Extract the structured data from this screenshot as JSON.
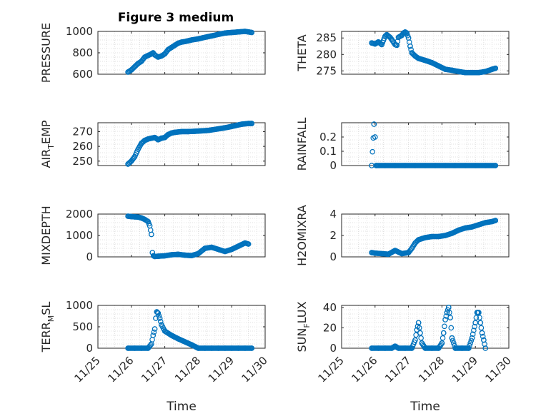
{
  "figure": {
    "title": "Figure 3 medium",
    "marker_color": "#0072BD"
  },
  "chart_data": [
    {
      "type": "scatter",
      "title": "Figure 3 medium",
      "ylabel": "PRESSURE",
      "xlabel": "",
      "xlim": [
        "11/25",
        "11/30"
      ],
      "xticks": [
        "11/25",
        "11/26",
        "11/27",
        "11/28",
        "11/29",
        "11/30"
      ],
      "ylim": [
        600,
        1000
      ],
      "yticks": [
        "600",
        "800",
        "1000"
      ],
      "grid": "dotted",
      "x": [
        25.9,
        26.0,
        26.1,
        26.2,
        26.3,
        26.4,
        26.5,
        26.6,
        26.65,
        26.7,
        26.8,
        26.9,
        27.0,
        27.1,
        27.2,
        27.3,
        27.4,
        27.5,
        27.6,
        27.7,
        27.8,
        27.9,
        28.0,
        28.2,
        28.4,
        28.6,
        28.8,
        29.0,
        29.2,
        29.4,
        29.5,
        29.6
      ],
      "y": [
        620,
        640,
        670,
        700,
        720,
        760,
        775,
        790,
        800,
        780,
        760,
        770,
        790,
        830,
        850,
        870,
        890,
        900,
        905,
        912,
        920,
        925,
        930,
        945,
        958,
        972,
        985,
        990,
        995,
        1000,
        995,
        990
      ]
    },
    {
      "type": "scatter",
      "ylabel": "THETA",
      "xlim": [
        "11/25",
        "11/30"
      ],
      "xticks": [
        "11/25",
        "11/26",
        "11/27",
        "11/28",
        "11/29",
        "11/30"
      ],
      "ylim": [
        274,
        287
      ],
      "yticks": [
        "275",
        "280",
        "285"
      ],
      "grid": "dotted",
      "x": [
        25.9,
        26.0,
        26.1,
        26.2,
        26.3,
        26.35,
        26.45,
        26.5,
        26.6,
        26.65,
        26.7,
        26.8,
        26.85,
        26.9,
        26.95,
        27.0,
        27.05,
        27.1,
        27.15,
        27.2,
        27.3,
        27.5,
        27.7,
        27.9,
        28.1,
        28.3,
        28.5,
        28.7,
        28.9,
        29.1,
        29.3,
        29.5,
        29.6
      ],
      "y": [
        283.5,
        283.2,
        283.8,
        283.0,
        285.5,
        286,
        285.2,
        284.5,
        283.0,
        282.8,
        285.2,
        285.8,
        286.5,
        286.8,
        286.5,
        285.0,
        282.5,
        280.5,
        280.0,
        279.5,
        278.8,
        278.2,
        277.5,
        276.5,
        275.5,
        275.2,
        274.8,
        274.5,
        274.5,
        274.5,
        274.8,
        275.5,
        275.8
      ]
    },
    {
      "type": "scatter",
      "ylabel": "AIR_TEMP",
      "xlim": [
        "11/25",
        "11/30"
      ],
      "xticks": [
        "11/25",
        "11/26",
        "11/27",
        "11/28",
        "11/29",
        "11/30"
      ],
      "ylim": [
        247,
        276
      ],
      "yticks": [
        "250",
        "260",
        "270"
      ],
      "grid": "dotted",
      "x": [
        25.9,
        26.0,
        26.1,
        26.2,
        26.3,
        26.4,
        26.5,
        26.6,
        26.7,
        26.8,
        26.9,
        27.0,
        27.1,
        27.2,
        27.3,
        27.5,
        27.7,
        27.9,
        28.1,
        28.3,
        28.5,
        28.7,
        28.9,
        29.1,
        29.3,
        29.5,
        29.6
      ],
      "y": [
        248,
        250,
        253,
        258,
        262,
        264,
        265,
        265.5,
        266,
        264.5,
        265.5,
        266,
        268,
        269,
        269.5,
        270,
        270,
        270.2,
        270.5,
        270.8,
        271.5,
        272.2,
        273,
        274,
        275,
        275.5,
        275.5
      ]
    },
    {
      "type": "scatter",
      "ylabel": "RAINFALL",
      "xlim": [
        "11/25",
        "11/30"
      ],
      "xticks": [
        "11/25",
        "11/26",
        "11/27",
        "11/28",
        "11/29",
        "11/30"
      ],
      "ylim": [
        0,
        0.3
      ],
      "yticks": [
        "0",
        "0.1",
        "0.2"
      ],
      "grid": "dotted",
      "x": [
        25.9,
        25.97,
        26.0,
        26.03,
        26.3,
        26.6,
        26.9,
        27.2,
        27.5,
        27.8,
        28.1,
        28.4,
        28.7,
        29.0,
        29.3,
        29.6
      ],
      "y": [
        0,
        0.29,
        0.2,
        0,
        0,
        0,
        0,
        0,
        0,
        0,
        0,
        0,
        0,
        0,
        0,
        0
      ]
    },
    {
      "type": "scatter",
      "ylabel": "MIXDEPTH",
      "xlim": [
        "11/25",
        "11/30"
      ],
      "xticks": [
        "11/25",
        "11/26",
        "11/27",
        "11/28",
        "11/29",
        "11/30"
      ],
      "ylim": [
        0,
        2000
      ],
      "yticks": [
        "0",
        "1000",
        "2000"
      ],
      "grid": "dotted",
      "x": [
        25.9,
        26.0,
        26.1,
        26.2,
        26.3,
        26.4,
        26.5,
        26.55,
        26.6,
        26.63,
        26.66,
        26.7,
        26.8,
        27.0,
        27.2,
        27.4,
        27.6,
        27.8,
        28.0,
        28.2,
        28.4,
        28.6,
        28.8,
        29.0,
        29.2,
        29.4,
        29.5
      ],
      "y": [
        1900,
        1880,
        1870,
        1860,
        1820,
        1750,
        1650,
        1450,
        1050,
        200,
        50,
        20,
        30,
        50,
        100,
        120,
        80,
        60,
        150,
        400,
        450,
        350,
        250,
        350,
        500,
        650,
        600
      ]
    },
    {
      "type": "scatter",
      "ylabel": "H2OMIXRA",
      "xlim": [
        "11/25",
        "11/30"
      ],
      "xticks": [
        "11/25",
        "11/26",
        "11/27",
        "11/28",
        "11/29",
        "11/30"
      ],
      "ylim": [
        0,
        4
      ],
      "yticks": [
        "0",
        "2",
        "4"
      ],
      "grid": "dotted",
      "x": [
        25.9,
        26.0,
        26.2,
        26.4,
        26.6,
        26.8,
        27.0,
        27.1,
        27.2,
        27.3,
        27.4,
        27.5,
        27.7,
        27.9,
        28.1,
        28.3,
        28.5,
        28.7,
        28.9,
        29.1,
        29.3,
        29.5,
        29.6
      ],
      "y": [
        0.4,
        0.35,
        0.3,
        0.25,
        0.6,
        0.3,
        0.4,
        0.8,
        1.3,
        1.6,
        1.7,
        1.8,
        1.9,
        1.9,
        2.0,
        2.2,
        2.5,
        2.7,
        2.8,
        3.0,
        3.2,
        3.3,
        3.4
      ]
    },
    {
      "type": "scatter",
      "ylabel": "TERR_MSL",
      "xlim": [
        "11/25",
        "11/30"
      ],
      "xticks": [
        "11/25",
        "11/26",
        "11/27",
        "11/28",
        "11/29",
        "11/30"
      ],
      "ylim": [
        0,
        1000
      ],
      "yticks": [
        "0",
        "500",
        "1000"
      ],
      "grid": "dotted",
      "x": [
        25.9,
        26.1,
        26.3,
        26.5,
        26.6,
        26.65,
        26.7,
        26.73,
        26.76,
        26.8,
        26.85,
        26.9,
        27.0,
        27.2,
        27.4,
        27.6,
        27.8,
        28.0,
        28.2,
        28.4,
        28.6,
        28.8,
        29.0,
        29.2,
        29.4,
        29.6
      ],
      "y": [
        0,
        0,
        0,
        0,
        100,
        300,
        450,
        700,
        850,
        820,
        700,
        550,
        400,
        300,
        220,
        150,
        80,
        0,
        0,
        0,
        0,
        0,
        0,
        0,
        0,
        0
      ]
    },
    {
      "type": "scatter",
      "ylabel": "SUN_FLUX",
      "xlim": [
        "11/25",
        "11/30"
      ],
      "xticks": [
        "11/25",
        "11/26",
        "11/27",
        "11/28",
        "11/29",
        "11/30"
      ],
      "ylim": [
        0,
        42
      ],
      "yticks": [
        "0",
        "20",
        "40"
      ],
      "grid": "dotted",
      "x": [
        25.9,
        26.1,
        26.3,
        26.5,
        26.6,
        26.7,
        26.9,
        27.1,
        27.2,
        27.25,
        27.3,
        27.35,
        27.4,
        27.5,
        27.7,
        27.9,
        28.0,
        28.05,
        28.1,
        28.15,
        28.2,
        28.25,
        28.3,
        28.4,
        28.6,
        28.8,
        28.9,
        29.0,
        29.05,
        29.1,
        29.15,
        29.2,
        29.25,
        29.3
      ],
      "y": [
        0,
        0,
        0,
        0,
        2,
        0,
        0,
        0,
        8,
        18,
        25,
        15,
        5,
        0,
        0,
        0,
        5,
        15,
        28,
        35,
        40,
        30,
        10,
        0,
        0,
        0,
        10,
        25,
        35,
        35,
        25,
        15,
        8,
        0
      ]
    }
  ]
}
